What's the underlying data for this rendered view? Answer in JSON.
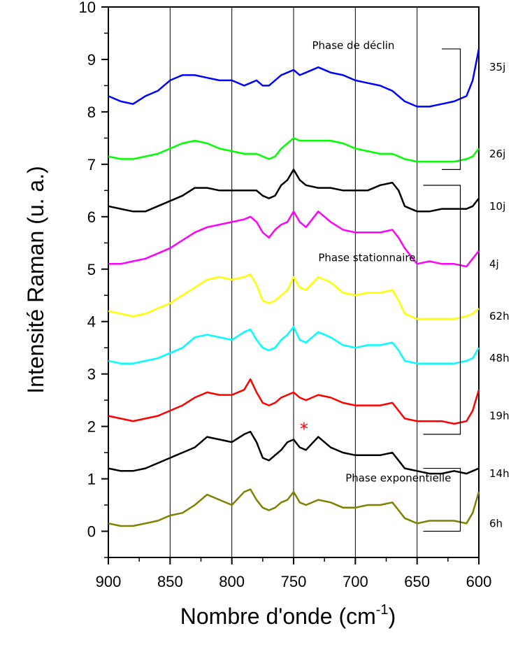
{
  "chart_data": {
    "type": "line",
    "xlabel": "Nombre d'onde (cm",
    "xlabel_sup": "-1",
    "xlabel_close": ")",
    "ylabel": "Intensité Raman (u. a.)",
    "xlim": [
      900,
      600
    ],
    "ylim": [
      -0.5,
      10
    ],
    "x_reversed": true,
    "x_ticks": [
      900,
      850,
      800,
      750,
      700,
      650,
      600
    ],
    "y_ticks": [
      0,
      1,
      2,
      3,
      4,
      5,
      6,
      7,
      8,
      9,
      10
    ],
    "vertical_gridlines": [
      850,
      800,
      750,
      700,
      650
    ],
    "x": [
      900,
      890,
      880,
      870,
      860,
      850,
      840,
      830,
      820,
      810,
      800,
      790,
      785,
      780,
      775,
      770,
      765,
      760,
      755,
      750,
      745,
      740,
      730,
      720,
      710,
      700,
      690,
      680,
      670,
      665,
      660,
      650,
      640,
      630,
      620,
      610,
      605,
      600
    ],
    "series": [
      {
        "name": "35j",
        "color": "#0000ff",
        "values": [
          8.3,
          8.2,
          8.15,
          8.3,
          8.4,
          8.6,
          8.7,
          8.7,
          8.65,
          8.6,
          8.6,
          8.5,
          8.55,
          8.6,
          8.5,
          8.5,
          8.6,
          8.7,
          8.75,
          8.8,
          8.7,
          8.75,
          8.85,
          8.75,
          8.7,
          8.6,
          8.55,
          8.5,
          8.4,
          8.3,
          8.2,
          8.1,
          8.1,
          8.15,
          8.2,
          8.3,
          8.6,
          9.2
        ]
      },
      {
        "name": "26j",
        "color": "#00ff00",
        "values": [
          7.15,
          7.1,
          7.1,
          7.15,
          7.2,
          7.3,
          7.4,
          7.45,
          7.4,
          7.3,
          7.25,
          7.2,
          7.2,
          7.2,
          7.15,
          7.1,
          7.15,
          7.3,
          7.4,
          7.5,
          7.45,
          7.45,
          7.45,
          7.45,
          7.4,
          7.3,
          7.25,
          7.2,
          7.2,
          7.15,
          7.1,
          7.05,
          7.05,
          7.05,
          7.05,
          7.1,
          7.15,
          7.3
        ]
      },
      {
        "name": "10j",
        "color": "#000000",
        "values": [
          6.2,
          6.15,
          6.1,
          6.1,
          6.2,
          6.3,
          6.4,
          6.55,
          6.55,
          6.5,
          6.5,
          6.5,
          6.5,
          6.5,
          6.4,
          6.35,
          6.4,
          6.6,
          6.7,
          6.9,
          6.7,
          6.6,
          6.55,
          6.55,
          6.5,
          6.5,
          6.5,
          6.6,
          6.65,
          6.5,
          6.2,
          6.1,
          6.1,
          6.15,
          6.15,
          6.15,
          6.2,
          6.35
        ]
      },
      {
        "name": "4j",
        "color": "#ff00ff",
        "values": [
          5.1,
          5.1,
          5.15,
          5.2,
          5.3,
          5.4,
          5.55,
          5.7,
          5.8,
          5.85,
          5.9,
          5.95,
          6.0,
          5.9,
          5.7,
          5.6,
          5.75,
          5.85,
          5.9,
          6.1,
          5.9,
          5.8,
          6.1,
          5.9,
          5.75,
          5.7,
          5.7,
          5.7,
          5.75,
          5.6,
          5.4,
          5.1,
          5.15,
          5.1,
          5.1,
          5.05,
          5.2,
          5.35
        ]
      },
      {
        "name": "62h",
        "color": "#ffff00",
        "values": [
          4.2,
          4.15,
          4.1,
          4.15,
          4.25,
          4.35,
          4.5,
          4.65,
          4.8,
          4.85,
          4.8,
          4.85,
          4.9,
          4.7,
          4.4,
          4.35,
          4.4,
          4.5,
          4.6,
          4.85,
          4.65,
          4.6,
          4.85,
          4.75,
          4.55,
          4.5,
          4.55,
          4.55,
          4.6,
          4.4,
          4.15,
          4.05,
          4.05,
          4.05,
          4.05,
          4.1,
          4.15,
          4.25
        ]
      },
      {
        "name": "48h",
        "color": "#00ffff",
        "values": [
          3.25,
          3.2,
          3.2,
          3.25,
          3.3,
          3.4,
          3.5,
          3.7,
          3.75,
          3.7,
          3.65,
          3.8,
          3.85,
          3.65,
          3.5,
          3.45,
          3.5,
          3.65,
          3.75,
          3.9,
          3.65,
          3.6,
          3.8,
          3.7,
          3.55,
          3.5,
          3.55,
          3.55,
          3.6,
          3.45,
          3.25,
          3.2,
          3.2,
          3.2,
          3.2,
          3.25,
          3.3,
          3.5
        ]
      },
      {
        "name": "19h",
        "color": "#ff0000",
        "values": [
          2.2,
          2.15,
          2.1,
          2.15,
          2.2,
          2.3,
          2.4,
          2.55,
          2.65,
          2.6,
          2.6,
          2.7,
          2.9,
          2.65,
          2.45,
          2.4,
          2.45,
          2.55,
          2.6,
          2.65,
          2.55,
          2.5,
          2.6,
          2.55,
          2.45,
          2.4,
          2.4,
          2.4,
          2.45,
          2.3,
          2.15,
          2.1,
          2.1,
          2.1,
          2.05,
          2.1,
          2.3,
          2.7
        ]
      },
      {
        "name": "14h",
        "color": "#000000",
        "values": [
          1.2,
          1.15,
          1.15,
          1.2,
          1.3,
          1.4,
          1.5,
          1.6,
          1.8,
          1.75,
          1.7,
          1.85,
          1.9,
          1.7,
          1.4,
          1.35,
          1.45,
          1.55,
          1.7,
          1.75,
          1.6,
          1.55,
          1.8,
          1.6,
          1.5,
          1.45,
          1.45,
          1.45,
          1.5,
          1.35,
          1.2,
          1.15,
          1.1,
          1.1,
          1.15,
          1.1,
          1.15,
          1.2
        ]
      },
      {
        "name": "6h",
        "color": "#808000",
        "values": [
          0.15,
          0.1,
          0.1,
          0.15,
          0.2,
          0.3,
          0.35,
          0.5,
          0.7,
          0.6,
          0.5,
          0.75,
          0.8,
          0.6,
          0.45,
          0.4,
          0.45,
          0.55,
          0.6,
          0.75,
          0.55,
          0.5,
          0.6,
          0.55,
          0.45,
          0.45,
          0.5,
          0.5,
          0.55,
          0.4,
          0.25,
          0.15,
          0.2,
          0.2,
          0.2,
          0.15,
          0.35,
          0.75
        ]
      }
    ],
    "annotations": [
      {
        "text": "Phase de déclin",
        "x": 735,
        "y": 9.2
      },
      {
        "text": "Phase stationnaire",
        "x": 730,
        "y": 5.15
      },
      {
        "text": "Phase exponentielle",
        "x": 708,
        "y": 0.95
      }
    ],
    "brackets": [
      {
        "x_start": 630,
        "x_end": 615,
        "y_top": 9.2,
        "y_bottom": 6.9
      },
      {
        "x_start": 645,
        "x_end": 615,
        "y_top": 6.6,
        "y_bottom": 1.85
      },
      {
        "x_start": 645,
        "x_end": 615,
        "y_top": 1.2,
        "y_bottom": 0.0
      }
    ],
    "marker": {
      "text": "*",
      "color": "#ff0000",
      "x": 745,
      "y": 1.95
    },
    "series_label_y": [
      8.85,
      7.2,
      6.2,
      5.1,
      4.1,
      3.3,
      2.2,
      1.1,
      0.15
    ]
  }
}
